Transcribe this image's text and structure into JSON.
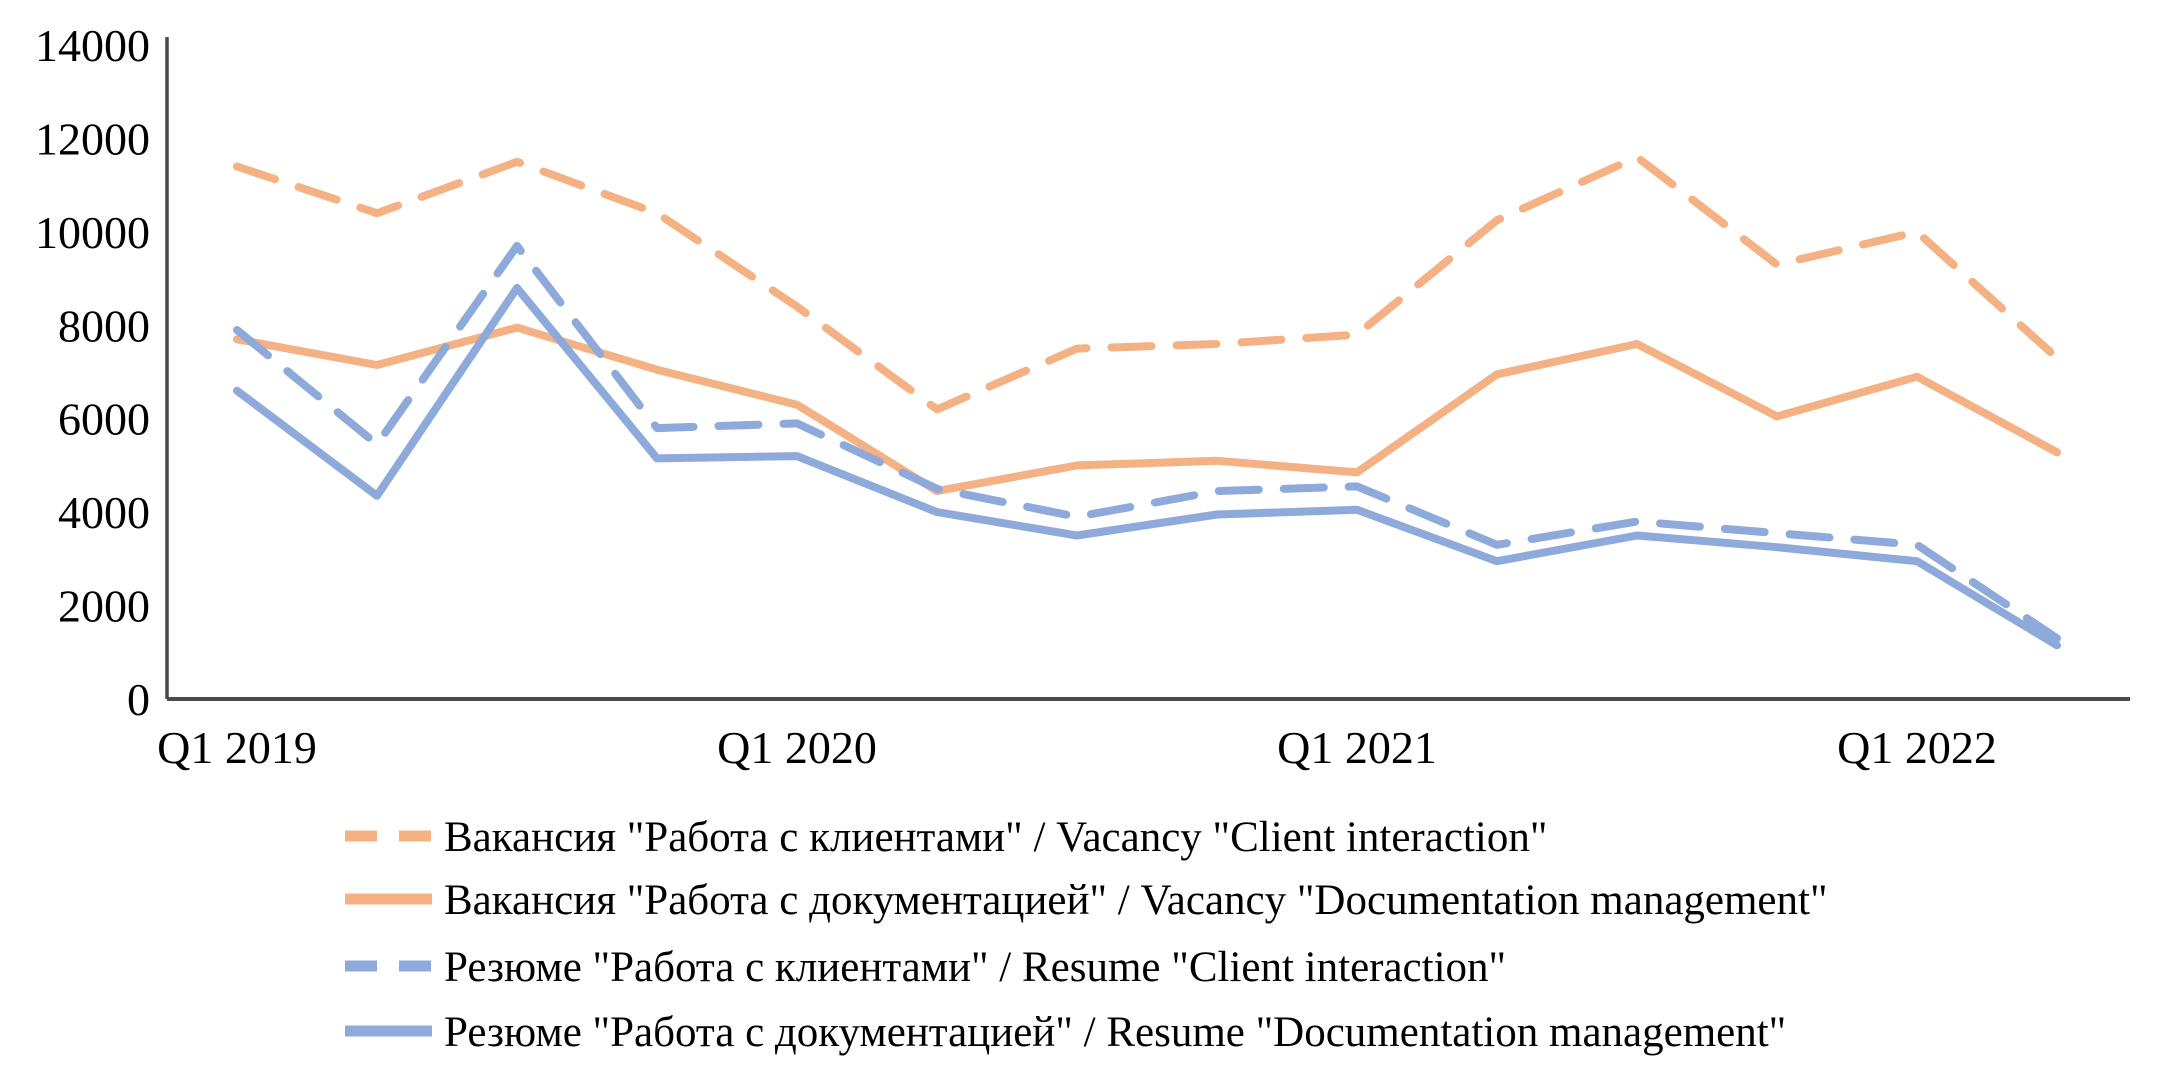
{
  "chart_data": {
    "type": "line",
    "title": "",
    "xlabel": "",
    "ylabel": "",
    "grid": false,
    "legend_position": "bottom",
    "axis_color": "#4a4a4a",
    "text_color": "#000000",
    "accent_orange": "#F4B183",
    "accent_blue": "#8EAADB",
    "categories": [
      "Q1 2019",
      "Q2 2019",
      "Q3 2019",
      "Q4 2019",
      "Q1 2020",
      "Q2 2020",
      "Q3 2020",
      "Q4 2020",
      "Q1 2021",
      "Q2 2021",
      "Q3 2021",
      "Q4 2021",
      "Q1 2022",
      "Q2 2022"
    ],
    "x_axis": {
      "visible_tick_labels": [
        "Q1 2019",
        "Q1 2020",
        "Q1 2021",
        "Q1 2022"
      ],
      "tick_category_indices": [
        0,
        4,
        8,
        12
      ]
    },
    "y_axis": {
      "min": 0,
      "max": 14000,
      "step": 2000,
      "tick_labels": [
        "0",
        "2000",
        "4000",
        "6000",
        "8000",
        "10000",
        "12000",
        "14000"
      ]
    },
    "series": [
      {
        "name": "Вакансия \"Работа с клиентами\" / Vacancy \"Client interaction\"",
        "color": "#F4B183",
        "style": "dashed",
        "values": [
          11400,
          10400,
          11500,
          10400,
          8400,
          6200,
          7500,
          7600,
          7800,
          10250,
          11600,
          9300,
          10000,
          7300
        ]
      },
      {
        "name": "Вакансия \"Работа с документацией\" / Vacancy \"Documentation management\"",
        "color": "#F4B183",
        "style": "solid",
        "values": [
          7700,
          7150,
          7950,
          7050,
          6300,
          4450,
          5000,
          5100,
          4850,
          6950,
          7600,
          6050,
          6900,
          5280
        ]
      },
      {
        "name": "Резюме \"Работа с клиентами\" / Resume \"Client interaction\"",
        "color": "#8EAADB",
        "style": "dashed",
        "values": [
          7900,
          5450,
          9700,
          5800,
          5900,
          4500,
          3900,
          4450,
          4550,
          3300,
          3800,
          3550,
          3300,
          1300
        ]
      },
      {
        "name": "Резюме \"Работа с документацией\" / Resume \"Documentation management\"",
        "color": "#8EAADB",
        "style": "solid",
        "values": [
          6600,
          4350,
          8800,
          5150,
          5200,
          4000,
          3500,
          3950,
          4050,
          2950,
          3500,
          3250,
          2950,
          1150
        ]
      }
    ]
  }
}
